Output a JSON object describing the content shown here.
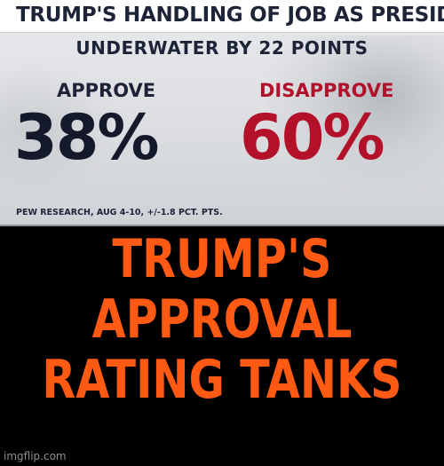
{
  "graphic": {
    "headline": "TRUMP'S HANDLING OF JOB AS PRESIDENT",
    "subheadline": "UNDERWATER BY 22 POINTS",
    "approve": {
      "label": "APPROVE",
      "value": "38%",
      "color": "#141a2b"
    },
    "disapprove": {
      "label": "DISAPPROVE",
      "value": "60%",
      "color": "#b3102a"
    },
    "source": "PEW RESEARCH, AUG 4-10, +/-1.8 PCT. PTS."
  },
  "caption": {
    "lines": [
      "TRUMP'S",
      "APPROVAL",
      "RATING TANKS"
    ],
    "color": "#ff5a14"
  },
  "watermark": "imgflip.com"
}
